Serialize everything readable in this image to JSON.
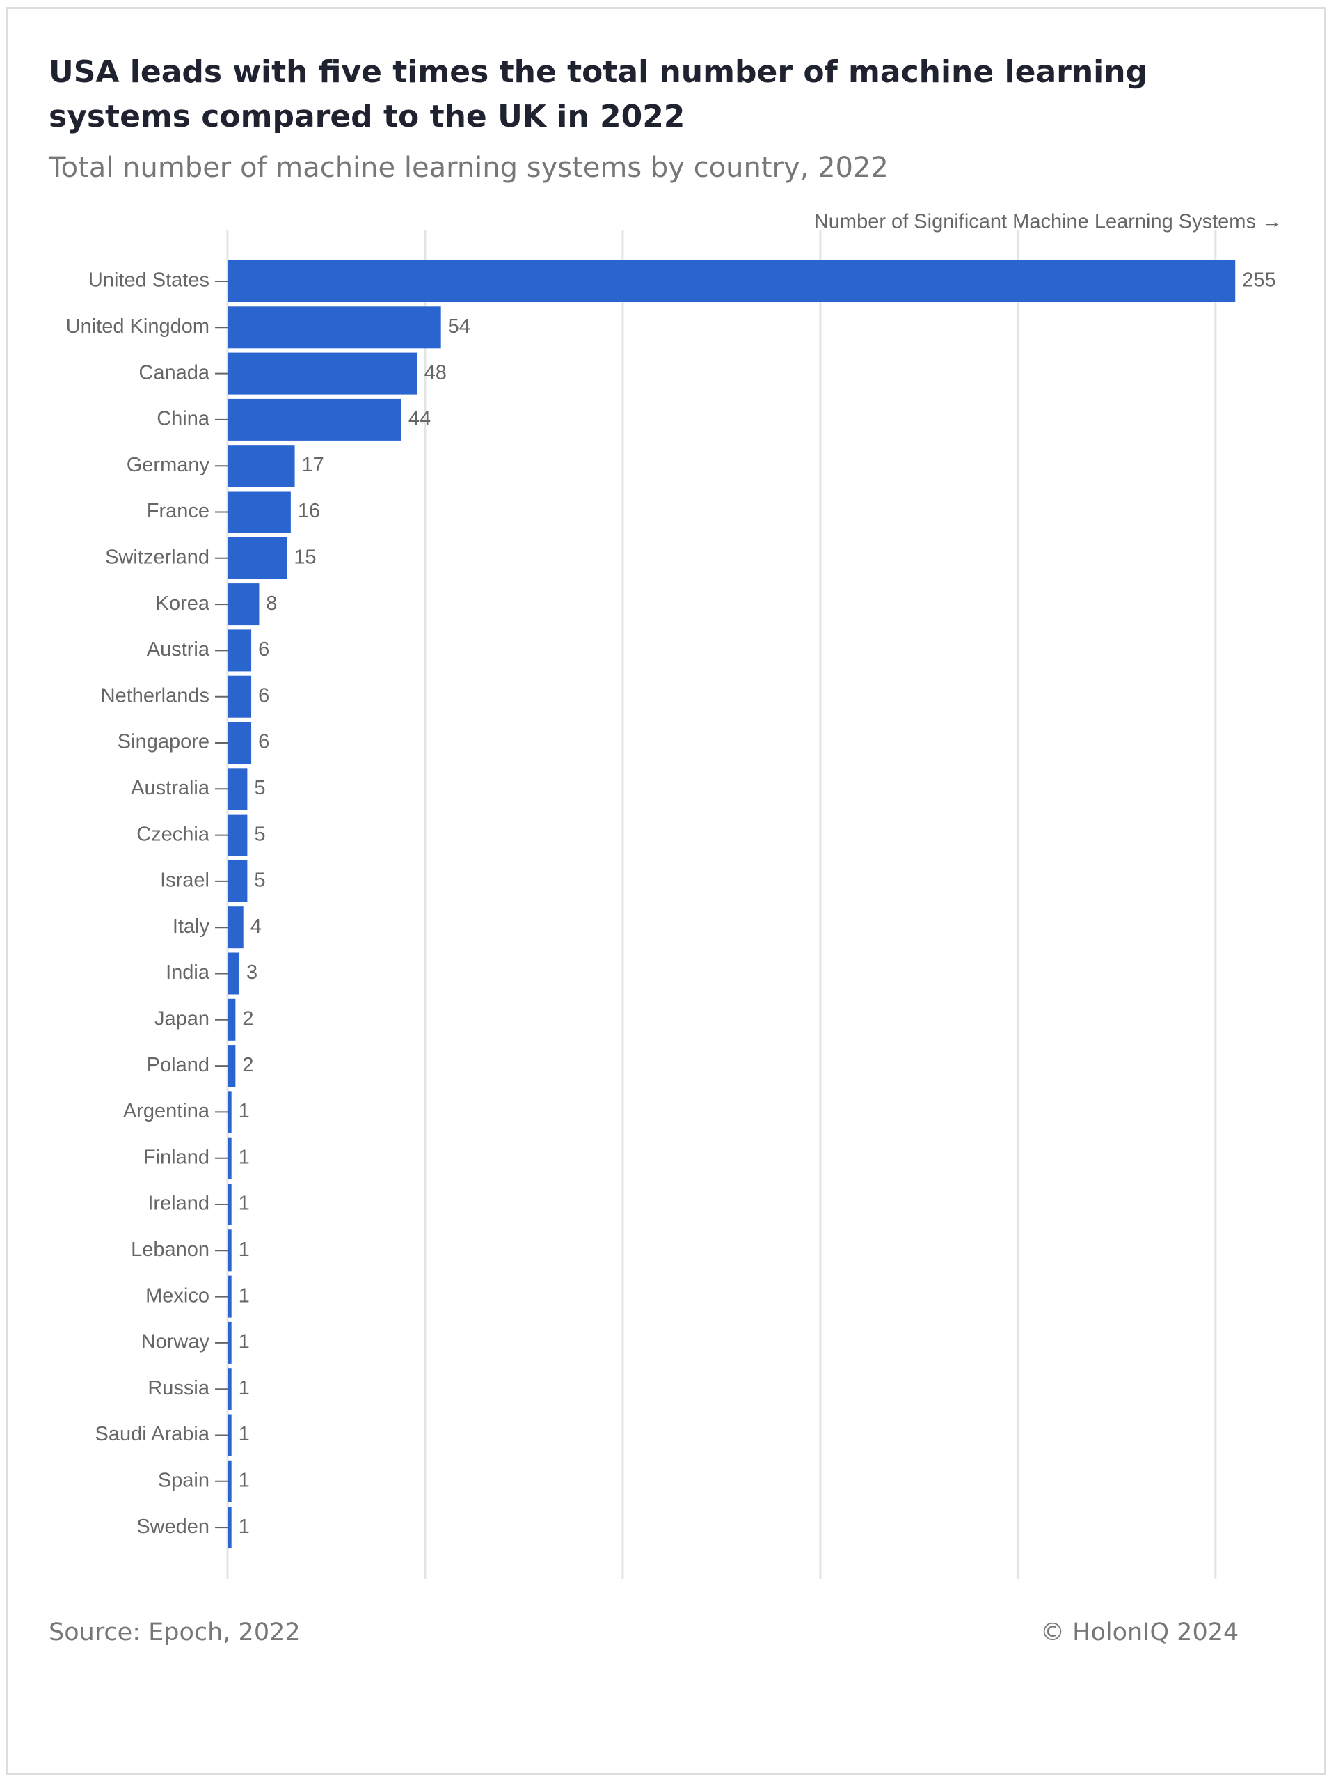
{
  "chart_data": {
    "type": "bar",
    "orientation": "horizontal",
    "title": "USA leads with five times the total number of machine learning systems compared to the UK in 2022",
    "subtitle": "Total number of machine learning systems by country, 2022",
    "x_label": "Number of Significant Machine Learning Systems →",
    "categories": [
      "United States",
      "United Kingdom",
      "Canada",
      "China",
      "Germany",
      "France",
      "Switzerland",
      "Korea",
      "Austria",
      "Netherlands",
      "Singapore",
      "Australia",
      "Czechia",
      "Israel",
      "Italy",
      "India",
      "Japan",
      "Poland",
      "Argentina",
      "Finland",
      "Ireland",
      "Lebanon",
      "Mexico",
      "Norway",
      "Russia",
      "Saudi Arabia",
      "Spain",
      "Sweden"
    ],
    "values": [
      255,
      54,
      48,
      44,
      17,
      16,
      15,
      8,
      6,
      6,
      6,
      5,
      5,
      5,
      4,
      3,
      2,
      2,
      1,
      1,
      1,
      1,
      1,
      1,
      1,
      1,
      1,
      1
    ],
    "color": "#2a64cf",
    "xlim": [
      0,
      265
    ],
    "xticks": [
      0,
      50,
      100,
      150,
      200,
      250
    ],
    "grid": true,
    "source": "Source: Epoch, 2022",
    "copyright": "© HolonIQ 2024"
  }
}
